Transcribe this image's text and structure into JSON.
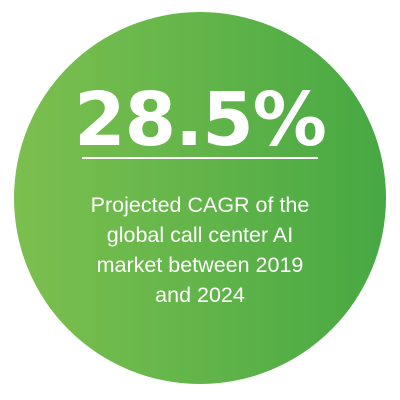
{
  "colors": {
    "circle_left": "#7cbf4f",
    "circle_right": "#47a843",
    "text": "#ffffff"
  },
  "stat": {
    "value": "28.5%"
  },
  "caption": {
    "lines": [
      "Projected CAGR of the",
      "global call center AI",
      "market between 2019",
      "and 2024"
    ]
  }
}
